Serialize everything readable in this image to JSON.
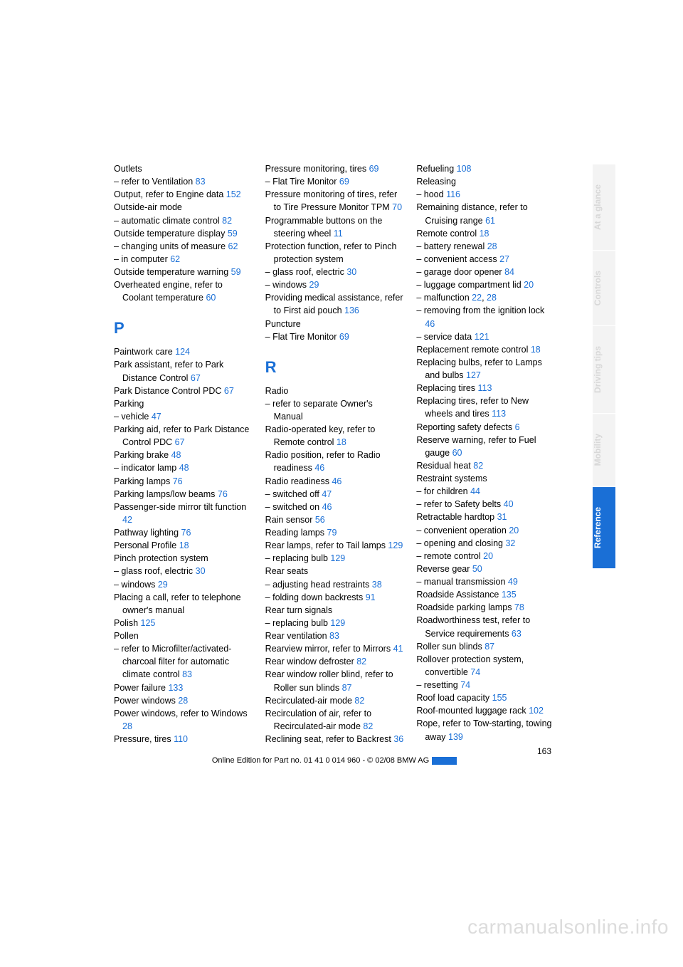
{
  "link_color": "#1a6fd6",
  "page_number": "163",
  "footer": "Online Edition for Part no. 01 41 0 014 960 - © 02/08 BMW AG",
  "watermark": "carmanualsonline.info",
  "tabs": [
    {
      "label": "At a glance",
      "active": false
    },
    {
      "label": "Controls",
      "active": false
    },
    {
      "label": "Driving tips",
      "active": false
    },
    {
      "label": "Mobility",
      "active": false
    },
    {
      "label": "Reference",
      "active": true
    }
  ],
  "columns": [
    {
      "items": [
        {
          "t": "Outlets"
        },
        {
          "t": "– refer to Ventilation ",
          "p": "83"
        },
        {
          "t": "Output, refer to Engine data ",
          "p": "152",
          "cls": "sub"
        },
        {
          "t": "Outside-air mode"
        },
        {
          "t": "– automatic climate control ",
          "p": "82"
        },
        {
          "t": "Outside temperature display ",
          "p": "59",
          "cls": "sub"
        },
        {
          "t": "– changing units of measure ",
          "p": "62",
          "cls": "sub"
        },
        {
          "t": "– in computer ",
          "p": "62"
        },
        {
          "t": "Outside temperature warning ",
          "p": "59",
          "cls": "sub"
        },
        {
          "t": "Overheated engine, refer to Coolant temperature ",
          "p": "60",
          "cls": "sub"
        },
        {
          "letter": "P"
        },
        {
          "t": "Paintwork care ",
          "p": "124"
        },
        {
          "t": "Park assistant, refer to Park Distance Control ",
          "p": "67",
          "cls": "sub"
        },
        {
          "t": "Park Distance Control PDC ",
          "p": "67"
        },
        {
          "t": "Parking"
        },
        {
          "t": "– vehicle ",
          "p": "47"
        },
        {
          "t": "Parking aid, refer to Park Distance Control PDC ",
          "p": "67",
          "cls": "sub"
        },
        {
          "t": "Parking brake ",
          "p": "48"
        },
        {
          "t": "– indicator lamp ",
          "p": "48"
        },
        {
          "t": "Parking lamps ",
          "p": "76"
        },
        {
          "t": "Parking lamps/low beams ",
          "p": "76"
        },
        {
          "t": "Passenger-side mirror tilt function ",
          "p": "42",
          "cls": "sub"
        },
        {
          "t": "Pathway lighting ",
          "p": "76"
        },
        {
          "t": "Personal Profile ",
          "p": "18"
        },
        {
          "t": "Pinch protection system"
        },
        {
          "t": "– glass roof, electric ",
          "p": "30"
        },
        {
          "t": "– windows ",
          "p": "29"
        },
        {
          "t": "Placing a call, refer to telephone owner's manual",
          "cls": "sub"
        },
        {
          "t": "Polish ",
          "p": "125"
        },
        {
          "t": "Pollen"
        },
        {
          "t": "– refer to Microfilter/activated-charcoal filter for automatic climate control ",
          "p": "83",
          "cls": "sub"
        },
        {
          "t": "Power failure ",
          "p": "133"
        },
        {
          "t": "Power windows ",
          "p": "28"
        },
        {
          "t": "Power windows, refer to Windows ",
          "p": "28",
          "cls": "sub"
        },
        {
          "t": "Pressure, tires ",
          "p": "110"
        }
      ]
    },
    {
      "items": [
        {
          "t": "Pressure monitoring, tires ",
          "p": "69"
        },
        {
          "t": "– Flat Tire Monitor ",
          "p": "69"
        },
        {
          "t": "Pressure monitoring of tires, refer to Tire Pressure Monitor TPM ",
          "p": "70",
          "cls": "sub"
        },
        {
          "t": "Programmable buttons on the steering wheel ",
          "p": "11",
          "cls": "sub"
        },
        {
          "t": "Protection function, refer to Pinch protection system",
          "cls": "sub"
        },
        {
          "t": "– glass roof, electric ",
          "p": "30"
        },
        {
          "t": "– windows ",
          "p": "29"
        },
        {
          "t": "Providing medical assistance, refer to First aid pouch ",
          "p": "136",
          "cls": "sub"
        },
        {
          "t": "Puncture"
        },
        {
          "t": "– Flat Tire Monitor ",
          "p": "69"
        },
        {
          "letter": "R"
        },
        {
          "t": "Radio"
        },
        {
          "t": "– refer to separate Owner's Manual",
          "cls": "sub"
        },
        {
          "t": "Radio-operated key, refer to Remote control ",
          "p": "18",
          "cls": "sub"
        },
        {
          "t": "Radio position, refer to Radio readiness ",
          "p": "46",
          "cls": "sub"
        },
        {
          "t": "Radio readiness ",
          "p": "46"
        },
        {
          "t": "– switched off ",
          "p": "47"
        },
        {
          "t": "– switched on ",
          "p": "46"
        },
        {
          "t": "Rain sensor ",
          "p": "56"
        },
        {
          "t": "Reading lamps ",
          "p": "79"
        },
        {
          "t": "Rear lamps, refer to Tail lamps ",
          "p": "129",
          "cls": "sub"
        },
        {
          "t": "– replacing bulb ",
          "p": "129"
        },
        {
          "t": "Rear seats"
        },
        {
          "t": "– adjusting head restraints ",
          "p": "38"
        },
        {
          "t": "– folding down backrests ",
          "p": "91"
        },
        {
          "t": "Rear turn signals"
        },
        {
          "t": "– replacing bulb ",
          "p": "129"
        },
        {
          "t": "Rear ventilation ",
          "p": "83"
        },
        {
          "t": "Rearview mirror, refer to Mirrors ",
          "p": "41",
          "cls": "sub"
        },
        {
          "t": "Rear window defroster ",
          "p": "82"
        },
        {
          "t": "Rear window roller blind, refer to Roller sun blinds ",
          "p": "87",
          "cls": "sub"
        },
        {
          "t": "Recirculated-air mode ",
          "p": "82"
        },
        {
          "t": "Recirculation of air, refer to Recirculated-air mode ",
          "p": "82",
          "cls": "sub"
        },
        {
          "t": "Reclining seat, refer to Backrest ",
          "p": "36",
          "cls": "sub"
        }
      ]
    },
    {
      "items": [
        {
          "t": "Refueling ",
          "p": "108"
        },
        {
          "t": "Releasing"
        },
        {
          "t": "– hood ",
          "p": "116"
        },
        {
          "t": "Remaining distance, refer to Cruising range ",
          "p": "61",
          "cls": "sub"
        },
        {
          "t": "Remote control ",
          "p": "18"
        },
        {
          "t": "– battery renewal ",
          "p": "28"
        },
        {
          "t": "– convenient access ",
          "p": "27"
        },
        {
          "t": "– garage door opener ",
          "p": "84"
        },
        {
          "t": "– luggage compartment lid ",
          "p": "20"
        },
        {
          "t": "– malfunction ",
          "p": "22",
          "extra": ", ",
          "p2": "28"
        },
        {
          "t": "– removing from the ignition lock ",
          "p": "46",
          "cls": "sub"
        },
        {
          "t": "– service data ",
          "p": "121"
        },
        {
          "t": "Replacement remote control ",
          "p": "18",
          "cls": "sub"
        },
        {
          "t": "Replacing bulbs, refer to Lamps and bulbs ",
          "p": "127",
          "cls": "sub"
        },
        {
          "t": "Replacing tires ",
          "p": "113"
        },
        {
          "t": "Replacing tires, refer to New wheels and tires ",
          "p": "113",
          "cls": "sub"
        },
        {
          "t": "Reporting safety defects ",
          "p": "6"
        },
        {
          "t": "Reserve warning, refer to Fuel gauge ",
          "p": "60",
          "cls": "sub"
        },
        {
          "t": "Residual heat ",
          "p": "82"
        },
        {
          "t": "Restraint systems"
        },
        {
          "t": "– for children ",
          "p": "44"
        },
        {
          "t": "– refer to Safety belts ",
          "p": "40"
        },
        {
          "t": "Retractable hardtop ",
          "p": "31"
        },
        {
          "t": "– convenient operation ",
          "p": "20"
        },
        {
          "t": "– opening and closing ",
          "p": "32"
        },
        {
          "t": "– remote control ",
          "p": "20"
        },
        {
          "t": "Reverse gear ",
          "p": "50"
        },
        {
          "t": "– manual transmission ",
          "p": "49"
        },
        {
          "t": "Roadside Assistance ",
          "p": "135"
        },
        {
          "t": "Roadside parking lamps ",
          "p": "78"
        },
        {
          "t": "Roadworthiness test, refer to Service requirements ",
          "p": "63",
          "cls": "sub"
        },
        {
          "t": "Roller sun blinds ",
          "p": "87"
        },
        {
          "t": "Rollover protection system, convertible ",
          "p": "74",
          "cls": "sub"
        },
        {
          "t": "– resetting ",
          "p": "74"
        },
        {
          "t": "Roof load capacity ",
          "p": "155"
        },
        {
          "t": "Roof-mounted luggage rack ",
          "p": "102",
          "cls": "sub"
        },
        {
          "t": "Rope, refer to Tow-starting, towing away ",
          "p": "139",
          "cls": "sub"
        }
      ]
    }
  ]
}
